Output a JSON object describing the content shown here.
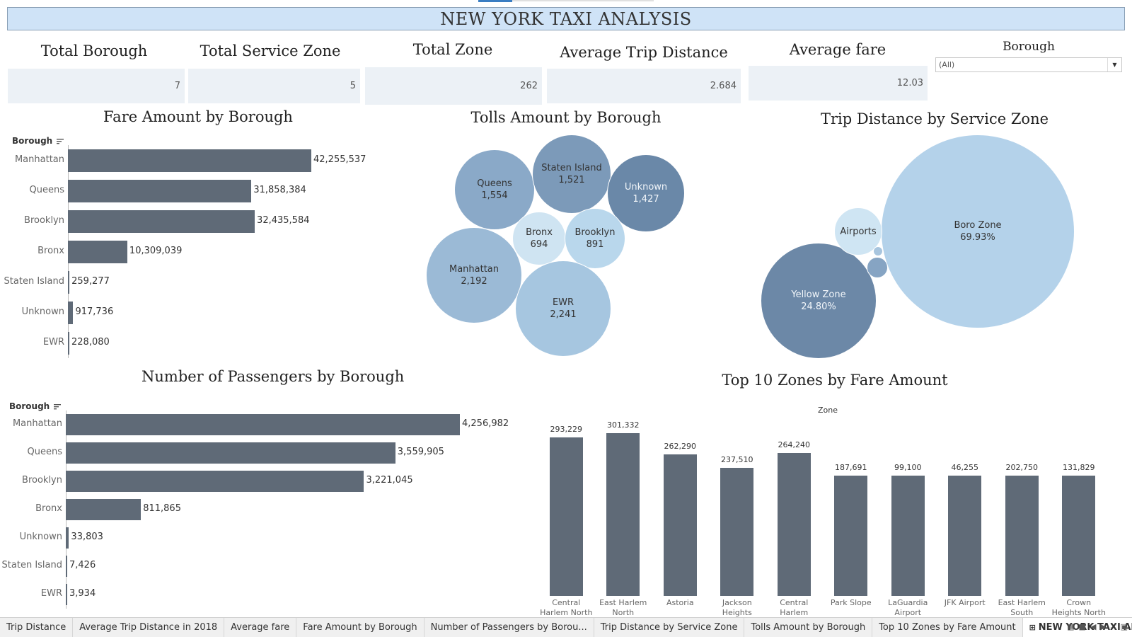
{
  "title": "NEW YORK TAXI ANALYSIS",
  "kpis": [
    {
      "label": "Total Borough",
      "value": "7"
    },
    {
      "label": "Total Service Zone",
      "value": "5"
    },
    {
      "label": "Total Zone",
      "value": "262"
    },
    {
      "label": "Average Trip Distance",
      "value": "2.684"
    },
    {
      "label": "Average fare",
      "value": "12.03"
    }
  ],
  "filter": {
    "label": "Borough",
    "value": "(All)"
  },
  "fare_chart": {
    "title": "Fare Amount by Borough",
    "axis_header": "Borough"
  },
  "tolls_chart": {
    "title": "Tolls Amount by Borough"
  },
  "trip_chart": {
    "title": "Trip Distance by Service Zone"
  },
  "passengers_chart": {
    "title": "Number of Passengers by Borough",
    "axis_header": "Borough"
  },
  "top_zones_chart": {
    "title": "Top 10 Zones by Fare Amount",
    "axis_header": "Zone"
  },
  "chart_data": [
    {
      "type": "bar",
      "title": "Fare Amount by Borough",
      "orientation": "horizontal",
      "categories": [
        "Manhattan",
        "Queens",
        "Brooklyn",
        "Bronx",
        "Staten Island",
        "Unknown",
        "EWR"
      ],
      "values": [
        42255537,
        31858384,
        32435584,
        10309039,
        259277,
        917736,
        228080
      ],
      "value_labels": [
        "42,255,537",
        "31,858,384",
        "32,435,584",
        "10,309,039",
        "259,277",
        "917,736",
        "228,080"
      ],
      "color": "#5f6a77"
    },
    {
      "type": "bubble",
      "title": "Tolls Amount by Borough",
      "items": [
        {
          "name": "Queens",
          "value": 1554,
          "label": "1,554",
          "color": "#8aa9c8"
        },
        {
          "name": "Staten Island",
          "value": 1521,
          "label": "1,521",
          "color": "#7c9ab9"
        },
        {
          "name": "Unknown",
          "value": 1427,
          "label": "1,427",
          "color": "#6a88a8"
        },
        {
          "name": "Bronx",
          "value": 694,
          "label": "694",
          "color": "#cfe4f2"
        },
        {
          "name": "Brooklyn",
          "value": 891,
          "label": "891",
          "color": "#b9d7ec"
        },
        {
          "name": "Manhattan",
          "value": 2192,
          "label": "2,192",
          "color": "#9bbad6"
        },
        {
          "name": "EWR",
          "value": 2241,
          "label": "2,241",
          "color": "#a6c6e0"
        }
      ]
    },
    {
      "type": "bubble",
      "title": "Trip Distance by Service Zone",
      "items": [
        {
          "name": "Boro Zone",
          "label": "69.93%",
          "value": 69.93,
          "color": "#b4d2ea"
        },
        {
          "name": "Yellow Zone",
          "label": "24.80%",
          "value": 24.8,
          "color": "#6c88a7"
        },
        {
          "name": "Airports",
          "label": "",
          "color": "#cfe5f3"
        },
        {
          "name": "",
          "label": "",
          "color": "#86a4c3"
        },
        {
          "name": "",
          "label": "",
          "color": "#a8c5de"
        }
      ]
    },
    {
      "type": "bar",
      "title": "Number of Passengers by Borough",
      "orientation": "horizontal",
      "categories": [
        "Manhattan",
        "Queens",
        "Brooklyn",
        "Bronx",
        "Unknown",
        "Staten Island",
        "EWR"
      ],
      "values": [
        4256982,
        3559905,
        3221045,
        811865,
        33803,
        7426,
        3934
      ],
      "value_labels": [
        "4,256,982",
        "3,559,905",
        "3,221,045",
        "811,865",
        "33,803",
        "7,426",
        "3,934"
      ],
      "color": "#5f6a77"
    },
    {
      "type": "bar",
      "title": "Top 10 Zones by Fare Amount",
      "orientation": "vertical",
      "categories": [
        "Central Harlem North",
        "East Harlem North",
        "Astoria",
        "Jackson Heights",
        "Central Harlem",
        "Park Slope",
        "LaGuardia Airport",
        "JFK Airport",
        "East Harlem South",
        "Crown Heights North"
      ],
      "values": [
        293229,
        301332,
        262290,
        237510,
        264240,
        187691,
        99100,
        46255,
        202750,
        131829
      ],
      "value_labels": [
        "293,229",
        "301,332",
        "262,290",
        "237,510",
        "264,240",
        "187,691",
        "99,100",
        "46,255",
        "202,750",
        "131,829"
      ],
      "color": "#5f6a77"
    }
  ],
  "tabs": [
    {
      "label": "Trip Distance",
      "active": false
    },
    {
      "label": "Average Trip Distance in 2018",
      "active": false
    },
    {
      "label": "Average fare",
      "active": false
    },
    {
      "label": "Fare Amount by Borough",
      "active": false
    },
    {
      "label": "Number of Passengers by Borou...",
      "active": false
    },
    {
      "label": "Trip Distance by Service Zone",
      "active": false
    },
    {
      "label": "Tolls Amount by Borough",
      "active": false
    },
    {
      "label": "Top 10 Zones by Fare Amount",
      "active": false
    },
    {
      "label": "NEW YORK TAXI ANALYSIS",
      "active": true,
      "icon": "dashboard-icon"
    }
  ]
}
